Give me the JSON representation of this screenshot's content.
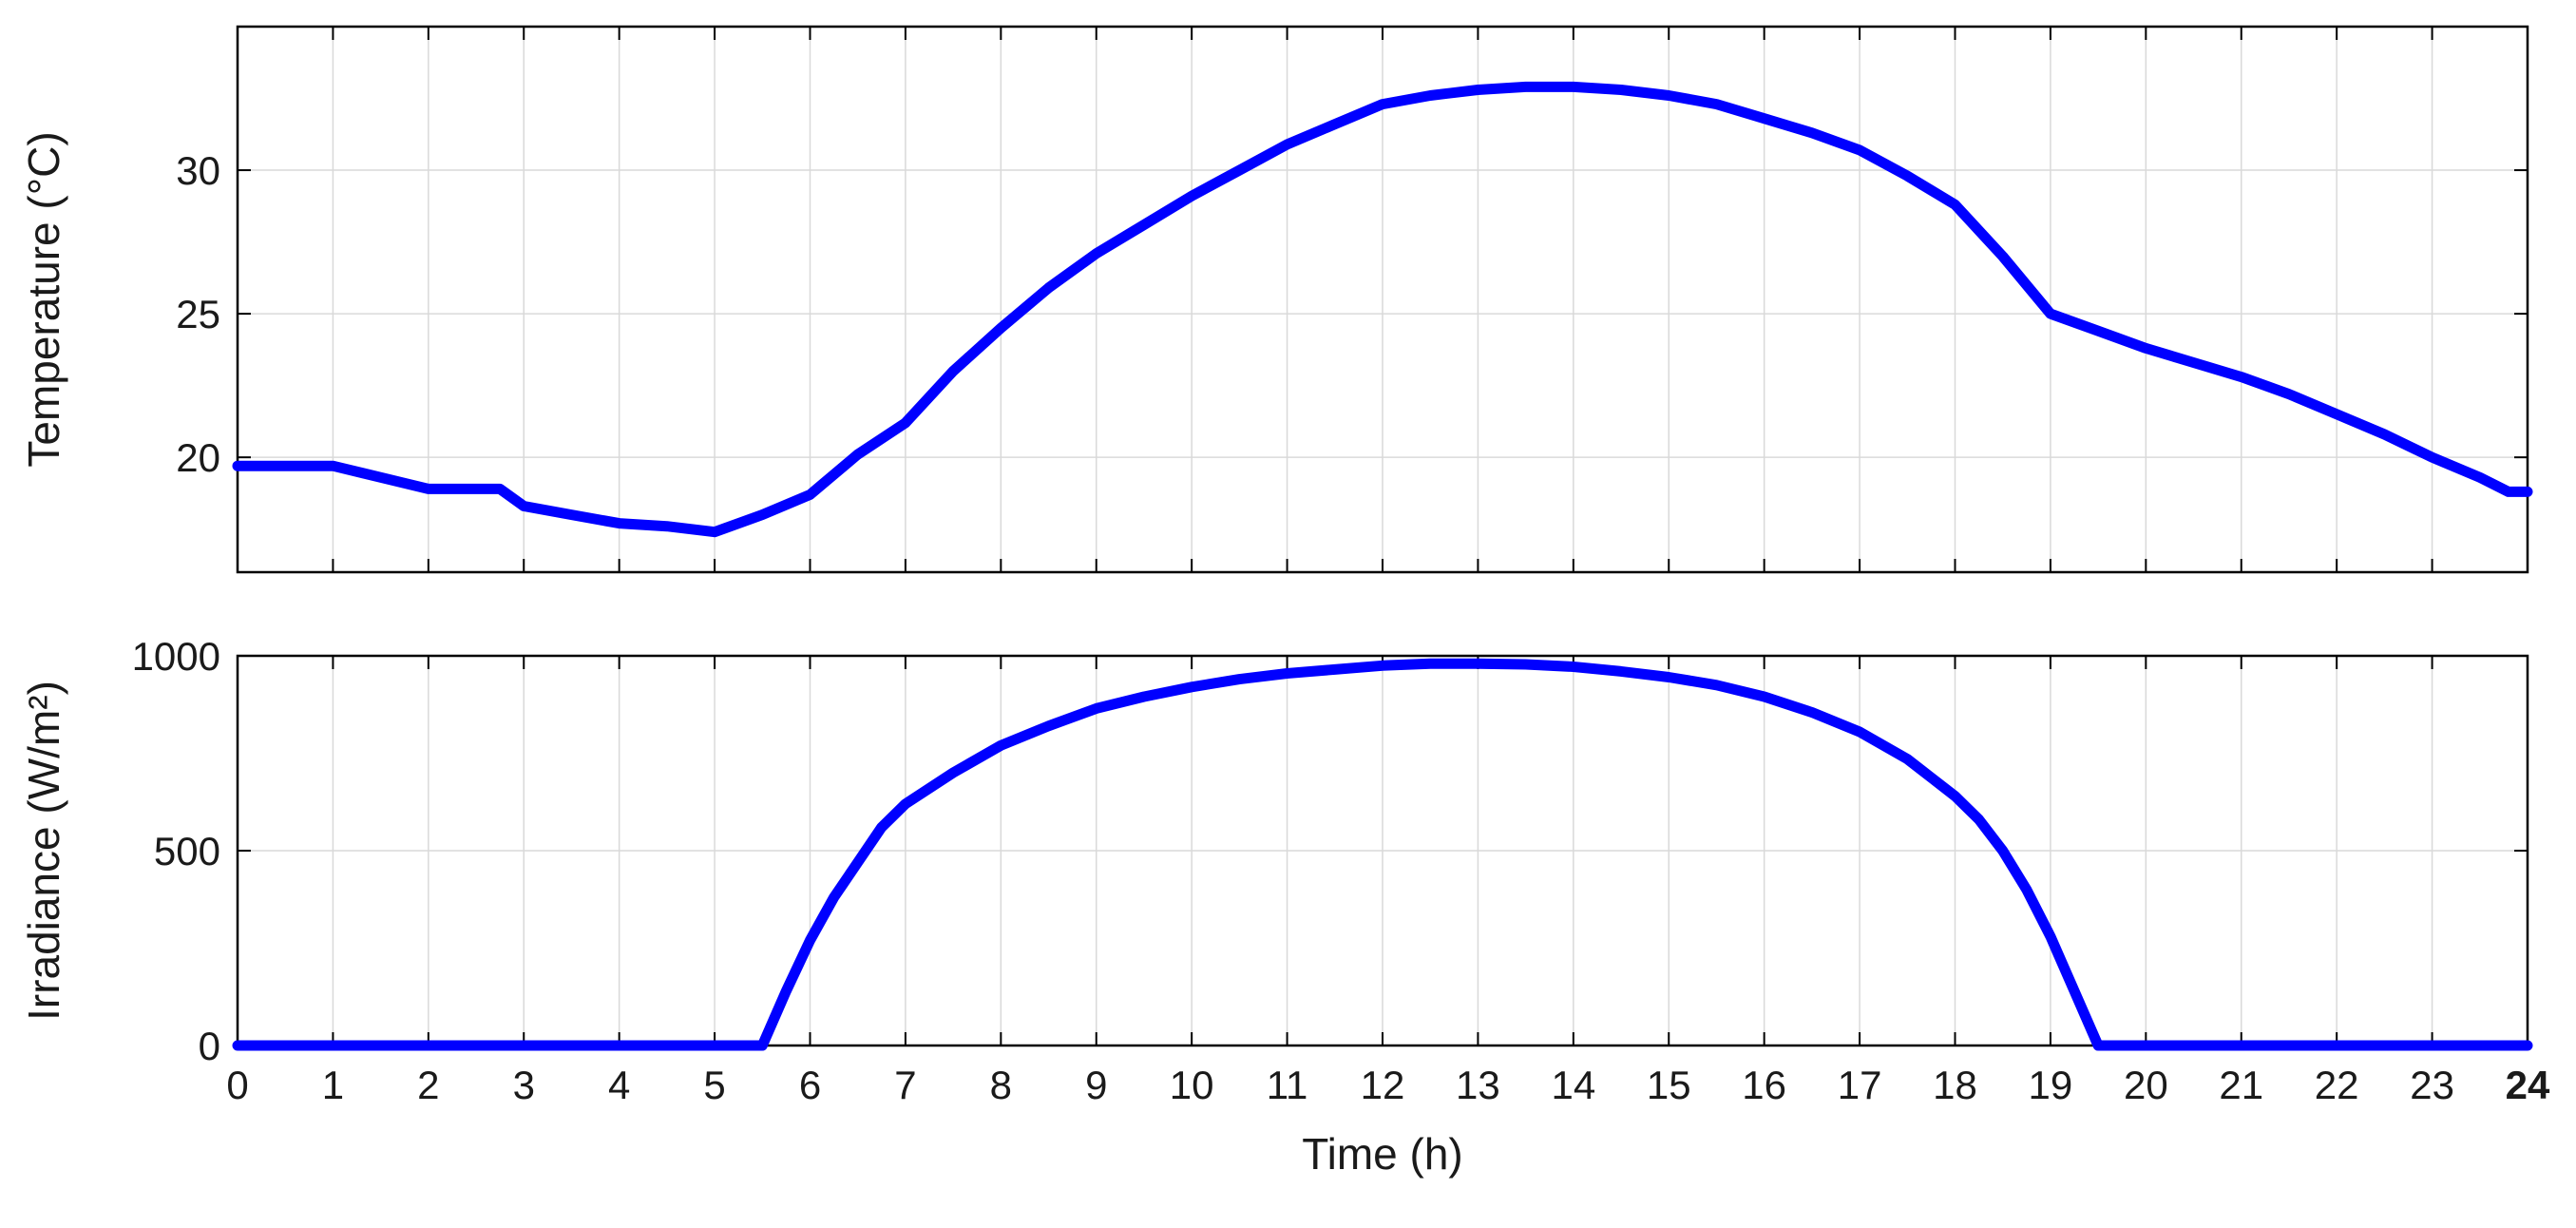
{
  "chart_data": [
    {
      "type": "line",
      "title": "",
      "xlabel": "",
      "ylabel": "Temperature (°C)",
      "xlim": [
        0,
        24
      ],
      "ylim": [
        16,
        35
      ],
      "xticks": [
        0,
        1,
        2,
        3,
        4,
        5,
        6,
        7,
        8,
        9,
        10,
        11,
        12,
        13,
        14,
        15,
        16,
        17,
        18,
        19,
        20,
        21,
        22,
        23,
        24
      ],
      "yticks": [
        20,
        25,
        30
      ],
      "grid": true,
      "series": [
        {
          "color": "#0000ff",
          "x": [
            0,
            1,
            2,
            2.75,
            3,
            3.5,
            4,
            4.5,
            5,
            5.5,
            6,
            6.5,
            7,
            7.5,
            8,
            8.5,
            9,
            9.5,
            10,
            10.5,
            11,
            11.5,
            12,
            12.5,
            13,
            13.5,
            14,
            14.5,
            15,
            15.5,
            16,
            16.5,
            17,
            17.5,
            18,
            18.5,
            19,
            19.5,
            20,
            20.5,
            21,
            21.5,
            22,
            22.5,
            23,
            23.5,
            23.8,
            24
          ],
          "y": [
            19.7,
            19.7,
            18.9,
            18.9,
            18.3,
            18.0,
            17.7,
            17.6,
            17.4,
            18.0,
            18.7,
            20.1,
            21.2,
            23.0,
            24.5,
            25.9,
            27.1,
            28.1,
            29.1,
            30.0,
            30.9,
            31.6,
            32.3,
            32.6,
            32.8,
            32.9,
            32.9,
            32.8,
            32.6,
            32.3,
            31.8,
            31.3,
            30.7,
            29.8,
            28.8,
            27.0,
            25.0,
            24.4,
            23.8,
            23.3,
            22.8,
            22.2,
            21.5,
            20.8,
            20.0,
            19.3,
            18.8,
            18.8
          ]
        }
      ]
    },
    {
      "type": "line",
      "title": "",
      "xlabel": "Time (h)",
      "ylabel": "Irradiance (W/m²)",
      "xlim": [
        0,
        24
      ],
      "ylim": [
        0,
        1000
      ],
      "xticks": [
        0,
        1,
        2,
        3,
        4,
        5,
        6,
        7,
        8,
        9,
        10,
        11,
        12,
        13,
        14,
        15,
        16,
        17,
        18,
        19,
        20,
        21,
        22,
        23,
        24
      ],
      "xtick_labels": [
        "0",
        "1",
        "2",
        "3",
        "4",
        "5",
        "6",
        "7",
        "8",
        "9",
        "10",
        "11",
        "12",
        "13",
        "14",
        "15",
        "16",
        "17",
        "18",
        "19",
        "20",
        "21",
        "22",
        "23",
        "24"
      ],
      "yticks": [
        0,
        500,
        1000
      ],
      "grid": true,
      "series": [
        {
          "color": "#0000ff",
          "x": [
            0,
            5.5,
            5.75,
            6,
            6.25,
            6.5,
            6.75,
            7,
            7.5,
            8,
            8.5,
            9,
            9.5,
            10,
            10.5,
            11,
            11.5,
            12,
            12.5,
            13,
            13.5,
            14,
            14.5,
            15,
            15.5,
            16,
            16.5,
            17,
            17.5,
            18,
            18.25,
            18.5,
            18.75,
            19,
            19.25,
            19.5,
            20,
            24
          ],
          "y": [
            0,
            0,
            140,
            270,
            380,
            470,
            560,
            620,
            700,
            770,
            820,
            865,
            895,
            920,
            940,
            955,
            965,
            975,
            980,
            980,
            978,
            972,
            960,
            945,
            925,
            895,
            855,
            805,
            735,
            640,
            580,
            500,
            400,
            280,
            140,
            0,
            0,
            0
          ]
        }
      ]
    }
  ]
}
